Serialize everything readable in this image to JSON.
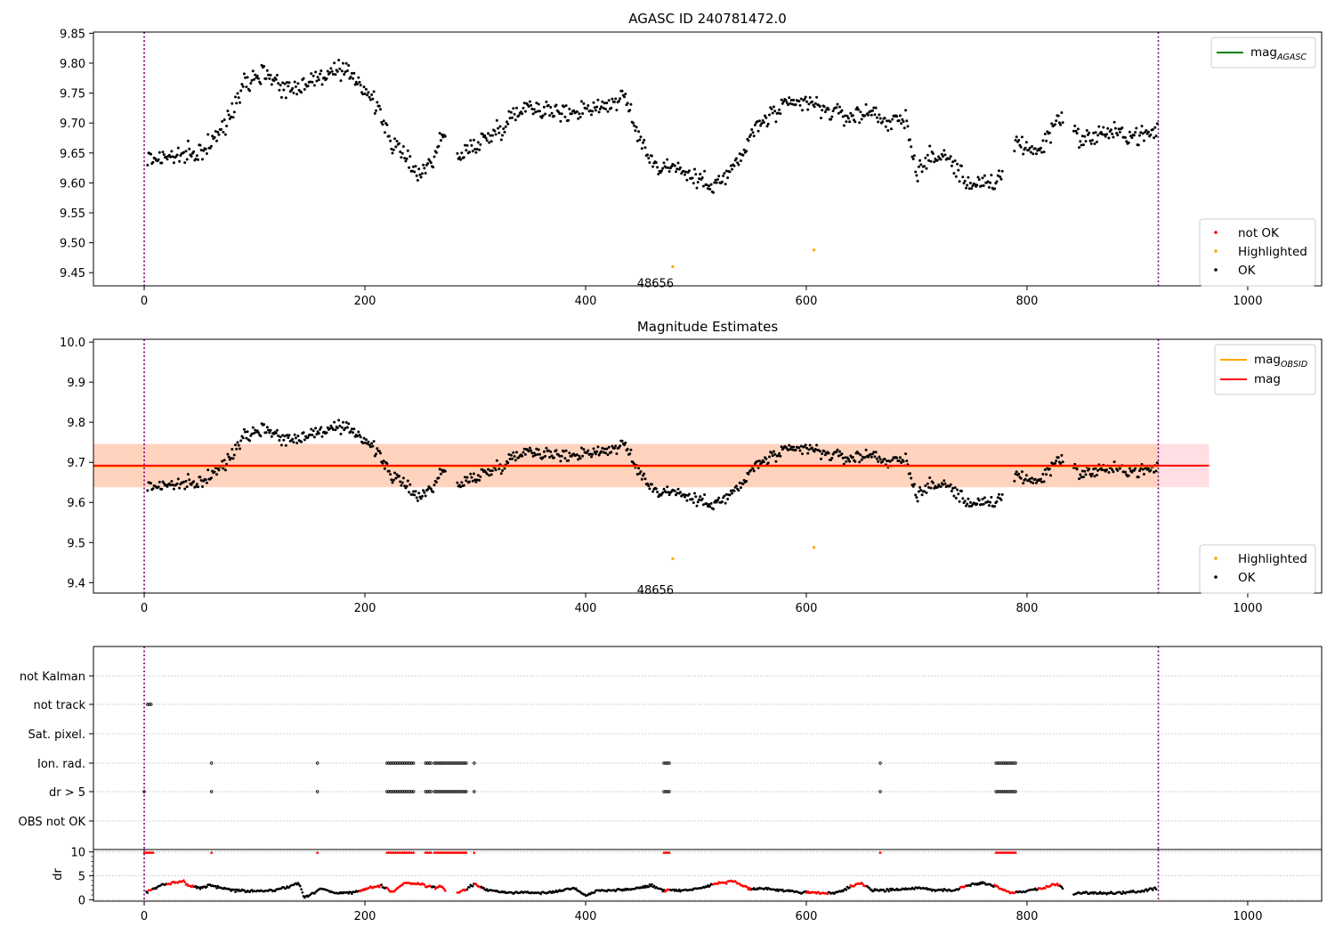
{
  "colors": {
    "ok": "#000000",
    "not_ok": "#ff0000",
    "highlighted": "#ffa500",
    "mag_agasc": "#008000",
    "mag_obsid": "#ffa500",
    "mag": "#ff0000",
    "band_mag": "#ffc0c8",
    "band_obsid": "#ffc8a0",
    "obs_boundary": "#800080",
    "grid": "#b0b0b0"
  },
  "chart_data": [
    {
      "type": "scatter",
      "title": "AGASC ID 240781472.0",
      "xlabel": "",
      "ylabel": "",
      "xlim": [
        -46,
        1067
      ],
      "ylim": [
        9.428,
        9.852
      ],
      "xticks": [
        0,
        200,
        400,
        600,
        800,
        1000
      ],
      "yticks": [
        9.45,
        9.5,
        9.55,
        9.6,
        9.65,
        9.7,
        9.75,
        9.8,
        9.85
      ],
      "xtick_labels": [
        "0",
        "200",
        "400",
        "600",
        "800",
        "1000"
      ],
      "ytick_labels": [
        "9.45",
        "9.50",
        "9.55",
        "9.60",
        "9.65",
        "9.70",
        "9.75",
        "9.80",
        "9.85"
      ],
      "obs_boundaries": [
        0,
        919
      ],
      "obsid_label": {
        "text": "48656",
        "x": 460,
        "y": 9.445
      },
      "ok_trend": [
        [
          5,
          9.64
        ],
        [
          25,
          9.645
        ],
        [
          45,
          9.645
        ],
        [
          60,
          9.665
        ],
        [
          75,
          9.7
        ],
        [
          90,
          9.77
        ],
        [
          110,
          9.785
        ],
        [
          130,
          9.755
        ],
        [
          150,
          9.77
        ],
        [
          170,
          9.785
        ],
        [
          190,
          9.78
        ],
        [
          205,
          9.745
        ],
        [
          215,
          9.71
        ],
        [
          225,
          9.665
        ],
        [
          240,
          9.635
        ],
        [
          250,
          9.615
        ],
        [
          260,
          9.635
        ],
        [
          272,
          9.685
        ],
        [
          285,
          9.64
        ],
        [
          300,
          9.665
        ],
        [
          315,
          9.68
        ],
        [
          330,
          9.705
        ],
        [
          345,
          9.73
        ],
        [
          360,
          9.725
        ],
        [
          380,
          9.715
        ],
        [
          400,
          9.725
        ],
        [
          420,
          9.73
        ],
        [
          435,
          9.745
        ],
        [
          445,
          9.69
        ],
        [
          455,
          9.655
        ],
        [
          465,
          9.625
        ],
        [
          480,
          9.63
        ],
        [
          495,
          9.61
        ],
        [
          510,
          9.6
        ],
        [
          525,
          9.605
        ],
        [
          540,
          9.64
        ],
        [
          555,
          9.695
        ],
        [
          570,
          9.715
        ],
        [
          585,
          9.73
        ],
        [
          600,
          9.735
        ],
        [
          620,
          9.72
        ],
        [
          640,
          9.71
        ],
        [
          660,
          9.72
        ],
        [
          675,
          9.7
        ],
        [
          690,
          9.705
        ],
        [
          700,
          9.62
        ],
        [
          715,
          9.645
        ],
        [
          730,
          9.64
        ],
        [
          745,
          9.6
        ],
        [
          760,
          9.6
        ],
        [
          770,
          9.59
        ],
        [
          790,
          9.67
        ],
        [
          810,
          9.65
        ],
        [
          830,
          9.715
        ],
        [
          850,
          9.67
        ],
        [
          870,
          9.685
        ],
        [
          890,
          9.68
        ],
        [
          910,
          9.68
        ],
        [
          920,
          9.69
        ]
      ],
      "gaps": [
        [
          273,
          283
        ],
        [
          778,
          788
        ],
        [
          833,
          842
        ]
      ],
      "ok_count": 920,
      "ok_noise": 0.016,
      "highlighted_points": [
        {
          "x": 479,
          "y": 9.46
        },
        {
          "x": 607,
          "y": 9.488
        }
      ],
      "legend_series": [
        {
          "name": "mag",
          "sub": "AGASC",
          "color": "#008000",
          "kind": "line"
        }
      ],
      "legend_points": [
        {
          "name": "not OK",
          "color": "#ff0000"
        },
        {
          "name": "Highlighted",
          "color": "#ffa500"
        },
        {
          "name": "OK",
          "color": "#000000"
        }
      ]
    },
    {
      "type": "scatter",
      "title": "Magnitude Estimates",
      "xlabel": "",
      "ylabel": "",
      "xlim": [
        -46,
        1067
      ],
      "ylim": [
        9.374,
        10.007
      ],
      "xticks": [
        0,
        200,
        400,
        600,
        800,
        1000
      ],
      "yticks": [
        9.4,
        9.5,
        9.6,
        9.7,
        9.8,
        9.9,
        10.0
      ],
      "xtick_labels": [
        "0",
        "200",
        "400",
        "600",
        "800",
        "1000"
      ],
      "ytick_labels": [
        "9.4",
        "9.5",
        "9.6",
        "9.7",
        "9.8",
        "9.9",
        "10.0"
      ],
      "obs_boundaries": [
        0,
        919
      ],
      "obsid_label": {
        "text": "48656",
        "x": 460,
        "y": 9.39
      },
      "mag": 9.692,
      "mag_band": [
        9.638,
        9.746
      ],
      "mag_xrange": [
        -46,
        965
      ],
      "obsid_mag": 9.69,
      "obsid_band": [
        9.638,
        9.746
      ],
      "obsid_xrange": [
        -46,
        919
      ],
      "highlighted_points": [
        {
          "x": 479,
          "y": 9.46
        },
        {
          "x": 607,
          "y": 9.488
        }
      ],
      "legend_series": [
        {
          "name": "mag",
          "sub": "OBSID",
          "color": "#ffa500",
          "kind": "line"
        },
        {
          "name": "mag",
          "sub": "",
          "color": "#ff0000",
          "kind": "line"
        }
      ],
      "legend_points": [
        {
          "name": "Highlighted",
          "color": "#ffa500"
        },
        {
          "name": "OK",
          "color": "#000000"
        }
      ]
    },
    {
      "type": "scatter",
      "title": "",
      "xlabel": "",
      "ylabel": "",
      "xlim": [
        -46,
        1067
      ],
      "categories": [
        "not Kalman",
        "not track",
        "Sat. pixel.",
        "Ion. rad.",
        "dr > 5",
        "OBS not OK"
      ],
      "obs_boundaries": [
        0,
        919
      ],
      "flags": {
        "not Kalman": [],
        "not track": [
          [
            3,
            7
          ]
        ],
        "Sat. pixel.": [],
        "Ion. rad.": [
          [
            61,
            61
          ],
          [
            157,
            157
          ],
          [
            220,
            245
          ],
          [
            255,
            260
          ],
          [
            263,
            292
          ],
          [
            299,
            299
          ],
          [
            471,
            476
          ],
          [
            667,
            667
          ],
          [
            772,
            790
          ]
        ],
        "dr > 5": [
          [
            0,
            0
          ],
          [
            61,
            61
          ],
          [
            157,
            157
          ],
          [
            220,
            245
          ],
          [
            255,
            260
          ],
          [
            263,
            292
          ],
          [
            299,
            299
          ],
          [
            471,
            476
          ],
          [
            667,
            667
          ],
          [
            772,
            790
          ]
        ],
        "OBS not OK": []
      }
    },
    {
      "type": "scatter",
      "title": "",
      "xlabel": "",
      "ylabel": "dr",
      "xlim": [
        -46,
        1067
      ],
      "ylim": [
        -0.3,
        10.5
      ],
      "yticks": [
        0,
        5,
        10
      ],
      "ytick_labels": [
        "0",
        "5",
        "10"
      ],
      "obs_boundaries": [
        0,
        919
      ],
      "dr_trend": [
        [
          2,
          1.5
        ],
        [
          15,
          3
        ],
        [
          25,
          3.5
        ],
        [
          35,
          4
        ],
        [
          40,
          3
        ],
        [
          50,
          2.5
        ],
        [
          60,
          3
        ],
        [
          70,
          2.5
        ],
        [
          80,
          2
        ],
        [
          100,
          1.8
        ],
        [
          120,
          2
        ],
        [
          140,
          3.5
        ],
        [
          145,
          0.5
        ],
        [
          155,
          1.5
        ],
        [
          160,
          2.5
        ],
        [
          170,
          1.5
        ],
        [
          190,
          1.5
        ],
        [
          205,
          2.5
        ],
        [
          215,
          3
        ],
        [
          225,
          1.5
        ],
        [
          235,
          3.5
        ],
        [
          250,
          3.3
        ],
        [
          262,
          2.5
        ],
        [
          270,
          2.8
        ],
        [
          278,
          0.8
        ],
        [
          290,
          2
        ],
        [
          300,
          3.3
        ],
        [
          310,
          2
        ],
        [
          330,
          1.5
        ],
        [
          350,
          1.5
        ],
        [
          370,
          1.6
        ],
        [
          390,
          2.5
        ],
        [
          400,
          0.8
        ],
        [
          410,
          2
        ],
        [
          430,
          2
        ],
        [
          450,
          2.5
        ],
        [
          460,
          3
        ],
        [
          470,
          2
        ],
        [
          490,
          2
        ],
        [
          505,
          2.5
        ],
        [
          520,
          3.5
        ],
        [
          535,
          3.8
        ],
        [
          550,
          2
        ],
        [
          560,
          2.5
        ],
        [
          575,
          2
        ],
        [
          600,
          1.5
        ],
        [
          625,
          1.3
        ],
        [
          650,
          3.5
        ],
        [
          660,
          2
        ],
        [
          680,
          2
        ],
        [
          700,
          2.5
        ],
        [
          720,
          2
        ],
        [
          735,
          2
        ],
        [
          745,
          3
        ],
        [
          760,
          3.5
        ],
        [
          770,
          3
        ],
        [
          785,
          1.5
        ],
        [
          800,
          1.8
        ],
        [
          815,
          2.5
        ],
        [
          828,
          3.3
        ],
        [
          840,
          1
        ],
        [
          850,
          1.5
        ],
        [
          870,
          1.3
        ],
        [
          890,
          1.5
        ],
        [
          905,
          1.8
        ],
        [
          918,
          2.5
        ]
      ],
      "gaps": [
        [
          273,
          283
        ],
        [
          833,
          842
        ]
      ],
      "dr_noise": 0.25,
      "red_ranges": [
        [
          3,
          7
        ],
        [
          20,
          45
        ],
        [
          61,
          61
        ],
        [
          74,
          74
        ],
        [
          157,
          157
        ],
        [
          195,
          215
        ],
        [
          220,
          260
        ],
        [
          263,
          292
        ],
        [
          299,
          305
        ],
        [
          410,
          410
        ],
        [
          471,
          476
        ],
        [
          515,
          550
        ],
        [
          600,
          620
        ],
        [
          640,
          655
        ],
        [
          667,
          667
        ],
        [
          739,
          745
        ],
        [
          770,
          790
        ],
        [
          810,
          830
        ]
      ],
      "red_top": [
        [
          0,
          8
        ],
        [
          61,
          61
        ],
        [
          157,
          157
        ],
        [
          220,
          245
        ],
        [
          255,
          260
        ],
        [
          263,
          292
        ],
        [
          299,
          299
        ],
        [
          471,
          476
        ],
        [
          667,
          667
        ],
        [
          772,
          790
        ]
      ]
    }
  ]
}
